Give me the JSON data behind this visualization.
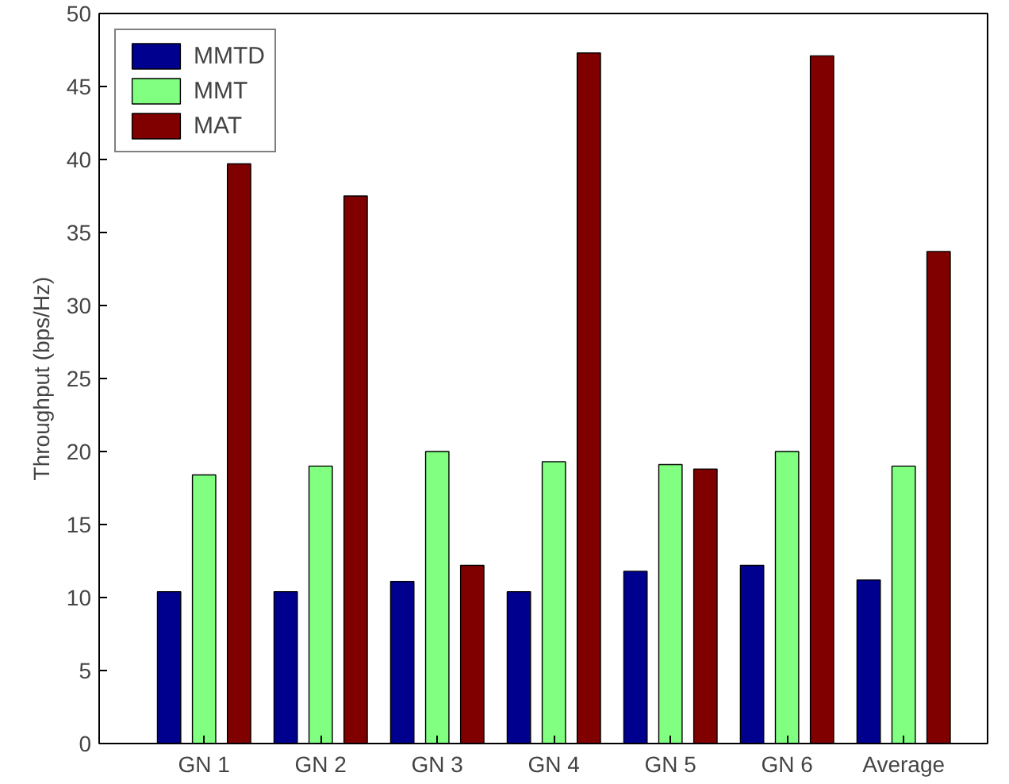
{
  "chart_data": {
    "type": "bar",
    "ylabel": "Throughput (bps/Hz)",
    "categories": [
      "GN 1",
      "GN 2",
      "GN 3",
      "GN 4",
      "GN 5",
      "GN 6",
      "Average"
    ],
    "series": [
      {
        "name": "MMTD",
        "color": "#00008f",
        "values": [
          10.4,
          10.4,
          11.1,
          10.4,
          11.8,
          12.2,
          11.2
        ]
      },
      {
        "name": "MMT",
        "color": "#80ff80",
        "values": [
          18.4,
          19.0,
          20.0,
          19.3,
          19.1,
          20.0,
          19.0
        ]
      },
      {
        "name": "MAT",
        "color": "#800000",
        "values": [
          39.7,
          37.5,
          12.2,
          47.3,
          18.8,
          47.1,
          33.7
        ]
      }
    ],
    "ylim": [
      0,
      50
    ],
    "yticks": [
      0,
      5,
      10,
      15,
      20,
      25,
      30,
      35,
      40,
      45,
      50
    ],
    "grid": false,
    "legend": "top left"
  }
}
